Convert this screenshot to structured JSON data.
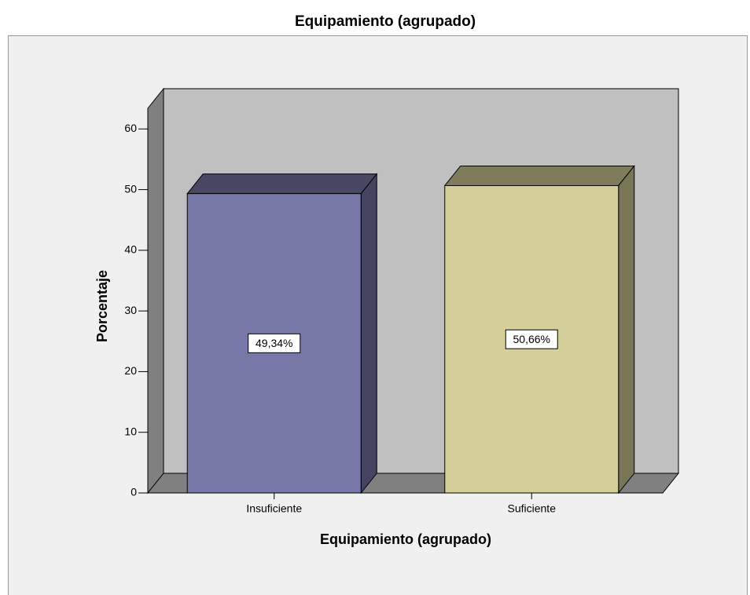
{
  "chart_data": {
    "type": "bar3d",
    "title": "Equipamiento (agrupado)",
    "x_label": "Equipamiento (agrupado)",
    "y_label": "Porcentaje",
    "categories": [
      "Insuficiente",
      "Suficiente"
    ],
    "values": [
      49.34,
      50.66
    ],
    "value_labels": [
      "49,34%",
      "50,66%"
    ],
    "colors": [
      "#7878a8",
      "#d4cf98"
    ],
    "ylim": [
      0,
      63.4
    ],
    "yticks": [
      0,
      10,
      20,
      30,
      40,
      50,
      60
    ]
  }
}
